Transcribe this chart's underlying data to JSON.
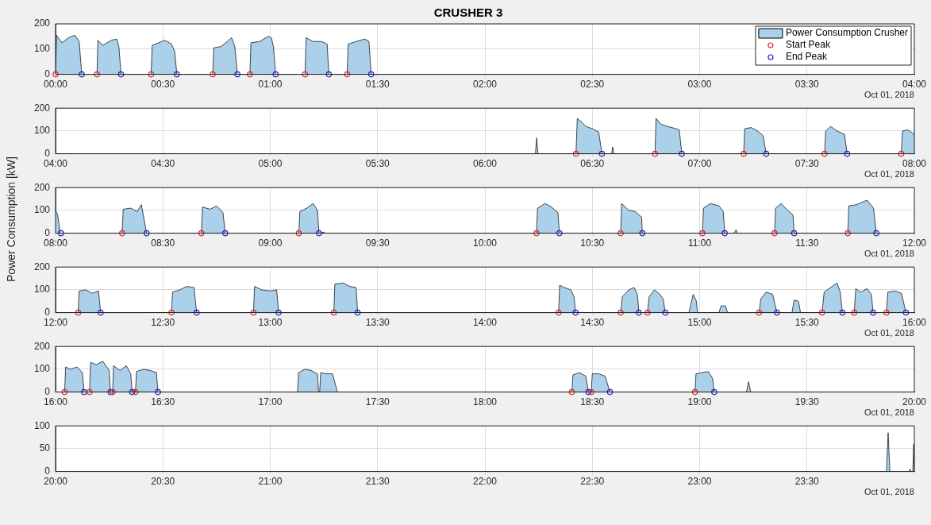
{
  "chart_data": [
    {
      "type": "area",
      "title": "CRUSHER 3",
      "annotations": [
        "Oct 01, 2018"
      ],
      "legend": "top right",
      "grid": true,
      "xlim": [
        0,
        4
      ],
      "ylim": [
        0,
        200
      ],
      "yticks": [
        0,
        100,
        200
      ],
      "xticks": [
        {
          "value": 0,
          "label": "00:00"
        },
        {
          "value": 0.5,
          "label": "00:30"
        },
        {
          "value": 1,
          "label": "01:00"
        },
        {
          "value": 1.5,
          "label": "01:30"
        },
        {
          "value": 2,
          "label": "02:00"
        },
        {
          "value": 2.5,
          "label": "02:30"
        },
        {
          "value": 3,
          "label": "03:00"
        },
        {
          "value": 3.5,
          "label": "03:30"
        },
        {
          "value": 4,
          "label": "04:00"
        }
      ],
      "series": [
        {
          "name": "Power Consumption Crusher",
          "color": "#abd0ea",
          "x": [
            0,
            0.004,
            0.03,
            0.06,
            0.09,
            0.11,
            0.122,
            0.193,
            0.197,
            0.22,
            0.26,
            0.285,
            0.295,
            0.305,
            0.445,
            0.45,
            0.48,
            0.51,
            0.54,
            0.555,
            0.565,
            0.732,
            0.737,
            0.77,
            0.8,
            0.82,
            0.835,
            0.847,
            0.905,
            0.91,
            0.95,
            0.99,
            1.005,
            1.015,
            1.025,
            1.162,
            1.167,
            1.2,
            1.24,
            1.265,
            1.273,
            1.358,
            1.363,
            1.4,
            1.44,
            1.46,
            1.47
          ],
          "values": [
            0,
            155,
            125,
            145,
            155,
            130,
            0,
            0,
            135,
            115,
            135,
            140,
            110,
            0,
            0,
            115,
            125,
            135,
            120,
            90,
            0,
            0,
            105,
            110,
            130,
            145,
            110,
            0,
            0,
            125,
            130,
            150,
            145,
            110,
            0,
            0,
            145,
            130,
            130,
            120,
            0,
            0,
            120,
            130,
            140,
            130,
            0
          ]
        },
        {
          "name": "Start Peak",
          "type": "scatter",
          "marker": "circle",
          "color": "#e02828",
          "x": [
            0,
            0.193,
            0.445,
            0.732,
            0.905,
            1.162,
            1.358
          ],
          "values": [
            0,
            0,
            0,
            0,
            0,
            0,
            0
          ]
        },
        {
          "name": "End Peak",
          "type": "scatter",
          "marker": "circle",
          "color": "#2020c8",
          "x": [
            0.122,
            0.305,
            0.565,
            0.847,
            1.025,
            1.273,
            1.47
          ],
          "values": [
            0,
            0,
            0,
            0,
            0,
            0,
            0
          ]
        }
      ]
    },
    {
      "type": "area",
      "annotations": [
        "Oct 01, 2018"
      ],
      "grid": true,
      "xlim": [
        4,
        8
      ],
      "ylim": [
        0,
        200
      ],
      "yticks": [
        0,
        100,
        200
      ],
      "xticks": [
        {
          "value": 4,
          "label": "04:00"
        },
        {
          "value": 4.5,
          "label": "04:30"
        },
        {
          "value": 5,
          "label": "05:00"
        },
        {
          "value": 5.5,
          "label": "05:30"
        },
        {
          "value": 6,
          "label": "06:00"
        },
        {
          "value": 6.5,
          "label": "06:30"
        },
        {
          "value": 7,
          "label": "07:00"
        },
        {
          "value": 7.5,
          "label": "07:30"
        },
        {
          "value": 8,
          "label": "08:00"
        }
      ],
      "series": [
        {
          "color": "#abd0ea",
          "x": [
            6.235,
            6.241,
            6.247,
            6.424,
            6.43,
            6.45,
            6.47,
            6.5,
            6.53,
            6.545,
            6.59,
            6.595,
            6.6,
            6.792,
            6.797,
            6.82,
            6.85,
            6.89,
            6.905,
            6.917,
            7.205,
            7.21,
            7.24,
            7.27,
            7.295,
            7.31,
            7.582,
            7.587,
            7.61,
            7.64,
            7.675,
            7.687,
            7.939,
            7.945,
            7.97,
            8
          ],
          "values": [
            0,
            70,
            0,
            0,
            155,
            140,
            120,
            110,
            95,
            0,
            0,
            30,
            0,
            0,
            155,
            130,
            120,
            110,
            105,
            0,
            0,
            110,
            115,
            100,
            80,
            0,
            0,
            100,
            120,
            100,
            85,
            0,
            0,
            100,
            105,
            85
          ]
        },
        {
          "type": "scatter",
          "marker": "circle",
          "color": "#e02828",
          "x": [
            6.424,
            6.792,
            7.205,
            7.582,
            7.939
          ],
          "values": [
            0,
            0,
            0,
            0,
            0
          ]
        },
        {
          "type": "scatter",
          "marker": "circle",
          "color": "#2020c8",
          "x": [
            6.545,
            6.917,
            7.31,
            7.687
          ],
          "values": [
            0,
            0,
            0,
            0
          ]
        }
      ]
    },
    {
      "type": "area",
      "ylabel": "Power Consumption [kW]",
      "annotations": [
        "Oct 01, 2018"
      ],
      "grid": true,
      "xlim": [
        8,
        12
      ],
      "ylim": [
        0,
        200
      ],
      "yticks": [
        0,
        100,
        200
      ],
      "xticks": [
        {
          "value": 8,
          "label": "08:00"
        },
        {
          "value": 8.5,
          "label": "08:30"
        },
        {
          "value": 9,
          "label": "09:00"
        },
        {
          "value": 9.5,
          "label": "09:30"
        },
        {
          "value": 10,
          "label": "10:00"
        },
        {
          "value": 10.5,
          "label": "10:30"
        },
        {
          "value": 11,
          "label": "11:00"
        },
        {
          "value": 11.5,
          "label": "11:30"
        },
        {
          "value": 12,
          "label": "12:00"
        }
      ],
      "series": [
        {
          "color": "#abd0ea",
          "x": [
            8,
            8.01,
            8.022,
            8.31,
            8.315,
            8.35,
            8.38,
            8.4,
            8.424,
            8.679,
            8.684,
            8.72,
            8.75,
            8.78,
            8.79,
            9.133,
            9.138,
            9.17,
            9.2,
            9.22,
            9.227,
            9.25,
            9.255,
            10.24,
            10.245,
            10.28,
            10.31,
            10.34,
            10.347,
            10.632,
            10.637,
            10.67,
            10.7,
            10.73,
            10.733,
            11.013,
            11.018,
            11.05,
            11.09,
            11.11,
            11.117,
            11.16,
            11.17,
            11.175,
            11.349,
            11.354,
            11.38,
            11.41,
            11.435,
            11.44,
            11.69,
            11.695,
            11.73,
            11.78,
            11.81,
            11.823
          ],
          "values": [
            100,
            80,
            0,
            0,
            105,
            110,
            95,
            125,
            0,
            0,
            115,
            105,
            120,
            90,
            0,
            0,
            95,
            110,
            130,
            100,
            0,
            5,
            0,
            0,
            110,
            130,
            115,
            90,
            0,
            0,
            130,
            100,
            95,
            70,
            0,
            0,
            110,
            130,
            120,
            95,
            0,
            0,
            15,
            0,
            0,
            110,
            130,
            100,
            80,
            0,
            0,
            120,
            125,
            145,
            110,
            0
          ]
        },
        {
          "type": "scatter",
          "marker": "circle",
          "color": "#e02828",
          "x": [
            8.31,
            8.679,
            9.133,
            10.24,
            10.632,
            11.013,
            11.349,
            11.69
          ],
          "values": [
            0,
            0,
            0,
            0,
            0,
            0,
            0,
            0
          ]
        },
        {
          "type": "scatter",
          "marker": "circle",
          "color": "#2020c8",
          "x": [
            8.025,
            8.424,
            8.79,
            9.227,
            10.347,
            10.733,
            11.117,
            11.44,
            11.823
          ],
          "values": [
            0,
            0,
            0,
            0,
            0,
            0,
            0,
            0,
            0
          ]
        }
      ]
    },
    {
      "type": "area",
      "annotations": [
        "Oct 01, 2018"
      ],
      "grid": true,
      "xlim": [
        12,
        16
      ],
      "ylim": [
        0,
        200
      ],
      "yticks": [
        0,
        100,
        200
      ],
      "xticks": [
        {
          "value": 12,
          "label": "12:00"
        },
        {
          "value": 12.5,
          "label": "12:30"
        },
        {
          "value": 13,
          "label": "13:00"
        },
        {
          "value": 13.5,
          "label": "13:30"
        },
        {
          "value": 14,
          "label": "14:00"
        },
        {
          "value": 14.5,
          "label": "14:30"
        },
        {
          "value": 15,
          "label": "15:00"
        },
        {
          "value": 15.5,
          "label": "15:30"
        },
        {
          "value": 16,
          "label": "16:00"
        }
      ],
      "series": [
        {
          "color": "#abd0ea",
          "x": [
            12.105,
            12.11,
            12.14,
            12.17,
            12.2,
            12.21,
            12.54,
            12.545,
            12.58,
            12.61,
            12.645,
            12.657,
            12.922,
            12.927,
            12.96,
            13,
            13.03,
            13.039,
            13.296,
            13.301,
            13.34,
            13.37,
            13.4,
            13.407,
            14.343,
            14.348,
            14.37,
            14.4,
            14.415,
            14.422,
            14.632,
            14.64,
            14.67,
            14.695,
            14.71,
            14.717,
            14.757,
            14.765,
            14.79,
            14.815,
            14.83,
            14.84,
            14.95,
            14.97,
            14.985,
            14.99,
            15.09,
            15.1,
            15.12,
            15.13,
            15.277,
            15.285,
            15.31,
            15.34,
            15.36,
            15.43,
            15.44,
            15.46,
            15.47,
            15.57,
            15.58,
            15.61,
            15.64,
            15.655,
            15.665,
            15.72,
            15.727,
            15.75,
            15.78,
            15.8,
            15.808,
            15.87,
            15.877,
            15.91,
            15.94,
            15.961
          ],
          "values": [
            0,
            95,
            100,
            85,
            95,
            0,
            0,
            90,
            100,
            115,
            110,
            0,
            0,
            115,
            100,
            95,
            100,
            0,
            0,
            125,
            130,
            115,
            110,
            0,
            0,
            120,
            110,
            100,
            70,
            0,
            0,
            70,
            100,
            110,
            80,
            0,
            0,
            70,
            100,
            80,
            60,
            0,
            0,
            80,
            50,
            0,
            0,
            30,
            30,
            0,
            0,
            60,
            90,
            80,
            0,
            0,
            55,
            50,
            0,
            0,
            90,
            110,
            130,
            90,
            0,
            0,
            105,
            90,
            105,
            80,
            0,
            0,
            90,
            95,
            85,
            0
          ]
        },
        {
          "type": "scatter",
          "marker": "circle",
          "color": "#e02828",
          "x": [
            12.105,
            12.54,
            12.922,
            13.296,
            14.343,
            14.632,
            14.757,
            15.277,
            15.57,
            15.72,
            15.87
          ],
          "values": [
            0,
            0,
            0,
            0,
            0,
            0,
            0,
            0,
            0,
            0,
            0
          ]
        },
        {
          "type": "scatter",
          "marker": "circle",
          "color": "#2020c8",
          "x": [
            12.21,
            12.657,
            13.039,
            13.407,
            14.422,
            14.717,
            14.84,
            15.36,
            15.665,
            15.808,
            15.961
          ],
          "values": [
            0,
            0,
            0,
            0,
            0,
            0,
            0,
            0,
            0,
            0,
            0
          ]
        }
      ]
    },
    {
      "type": "area",
      "annotations": [
        "Oct 01, 2018"
      ],
      "grid": true,
      "xlim": [
        16,
        20
      ],
      "ylim": [
        0,
        200
      ],
      "yticks": [
        0,
        100,
        200
      ],
      "xticks": [
        {
          "value": 16,
          "label": "16:00"
        },
        {
          "value": 16.5,
          "label": "16:30"
        },
        {
          "value": 17,
          "label": "17:00"
        },
        {
          "value": 17.5,
          "label": "17:30"
        },
        {
          "value": 18,
          "label": "18:00"
        },
        {
          "value": 18.5,
          "label": "18:30"
        },
        {
          "value": 19,
          "label": "19:00"
        },
        {
          "value": 19.5,
          "label": "19:30"
        },
        {
          "value": 20,
          "label": "20:00"
        }
      ],
      "series": [
        {
          "color": "#abd0ea",
          "x": [
            16.042,
            16.047,
            16.07,
            16.1,
            16.125,
            16.133,
            16.158,
            16.163,
            16.19,
            16.22,
            16.25,
            16.256,
            16.266,
            16.27,
            16.3,
            16.33,
            16.35,
            16.357,
            16.372,
            16.377,
            16.41,
            16.44,
            16.47,
            16.477,
            17.127,
            17.132,
            17.16,
            17.19,
            17.22,
            17.225,
            17.23,
            17.235,
            17.26,
            17.29,
            17.313,
            18.405,
            18.41,
            18.44,
            18.47,
            18.482,
            18.495,
            18.5,
            18.53,
            18.56,
            18.582,
            18.978,
            18.983,
            19.01,
            19.04,
            19.06,
            19.068,
            19.218,
            19.228,
            19.238
          ],
          "values": [
            0,
            110,
            100,
            110,
            85,
            0,
            0,
            130,
            120,
            135,
            95,
            0,
            0,
            115,
            95,
            115,
            80,
            0,
            0,
            90,
            100,
            95,
            85,
            0,
            0,
            85,
            100,
            95,
            80,
            0,
            0,
            85,
            80,
            80,
            0,
            0,
            75,
            85,
            70,
            0,
            0,
            80,
            80,
            70,
            0,
            0,
            80,
            85,
            90,
            60,
            0,
            0,
            45,
            0
          ]
        },
        {
          "type": "scatter",
          "marker": "circle",
          "color": "#e02828",
          "x": [
            16.042,
            16.158,
            16.266,
            16.372,
            18.405,
            18.495,
            18.978
          ],
          "values": [
            0,
            0,
            0,
            0,
            0,
            0,
            0
          ]
        },
        {
          "type": "scatter",
          "marker": "circle",
          "color": "#2020c8",
          "x": [
            16.133,
            16.256,
            16.357,
            16.477,
            18.482,
            18.582,
            19.068
          ],
          "values": [
            0,
            0,
            0,
            0,
            0,
            0,
            0
          ]
        }
      ]
    },
    {
      "type": "area",
      "annotations": [
        "Oct 01, 2018"
      ],
      "grid": true,
      "xlim": [
        20,
        24
      ],
      "ylim": [
        0,
        100
      ],
      "yticks": [
        0,
        50,
        100
      ],
      "xticks": [
        {
          "value": 20,
          "label": "20:00"
        },
        {
          "value": 20.5,
          "label": "20:30"
        },
        {
          "value": 21,
          "label": "21:00"
        },
        {
          "value": 21.5,
          "label": "21:30"
        },
        {
          "value": 22,
          "label": "22:00"
        },
        {
          "value": 22.5,
          "label": "22:30"
        },
        {
          "value": 23,
          "label": "23:00"
        },
        {
          "value": 23.5,
          "label": "23:30"
        },
        {
          "value": 24,
          "label": null
        }
      ],
      "series": [
        {
          "color": "#abd0ea",
          "x": [
            23.87,
            23.878,
            23.886,
            23.975,
            23.98,
            23.985,
            23.993,
            23.997,
            24
          ],
          "values": [
            0,
            85,
            0,
            0,
            5,
            0,
            0,
            60,
            0
          ]
        }
      ]
    }
  ]
}
